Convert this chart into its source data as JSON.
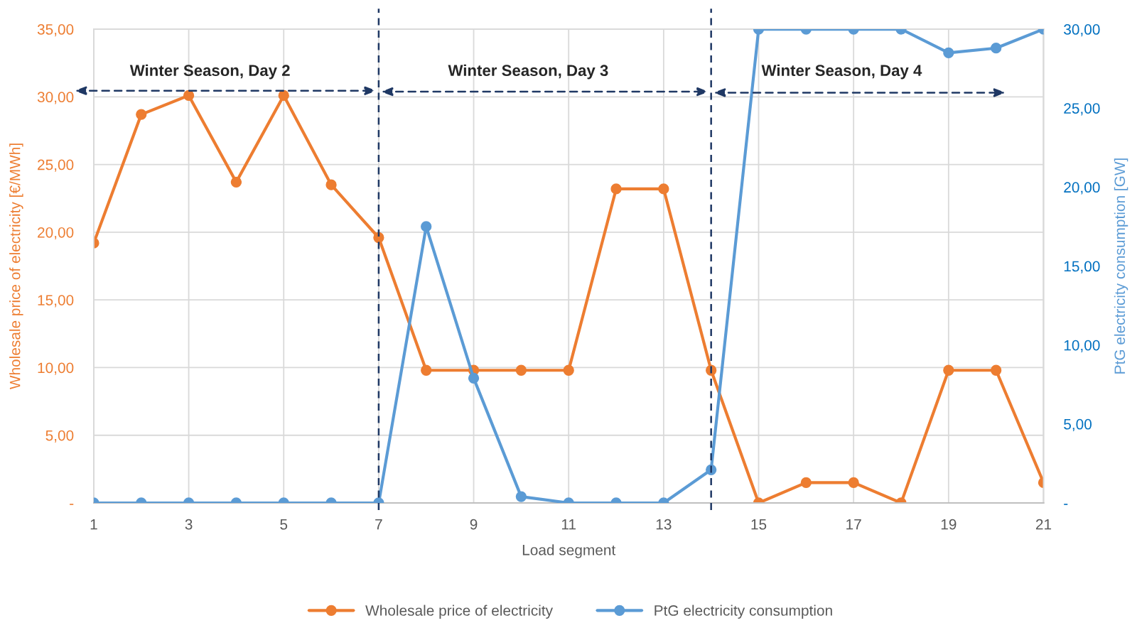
{
  "chart_data": {
    "type": "line",
    "x": [
      1,
      2,
      3,
      4,
      5,
      6,
      7,
      8,
      9,
      10,
      11,
      12,
      13,
      14,
      15,
      16,
      17,
      18,
      19,
      20,
      21
    ],
    "xlim": [
      1,
      21
    ],
    "xticks": [
      1,
      3,
      5,
      7,
      9,
      11,
      13,
      15,
      17,
      19,
      21
    ],
    "ylim": [
      0,
      35
    ],
    "yticks": [
      {
        "value": 0,
        "label": "-"
      },
      {
        "value": 5,
        "label": "5,00"
      },
      {
        "value": 10,
        "label": "10,00"
      },
      {
        "value": 15,
        "label": "15,00"
      },
      {
        "value": 20,
        "label": "20,00"
      },
      {
        "value": 25,
        "label": "25,00"
      },
      {
        "value": 30,
        "label": "30,00"
      },
      {
        "value": 35,
        "label": "35,00"
      }
    ],
    "y2lim": [
      0,
      30
    ],
    "y2ticks": [
      {
        "value": 0,
        "label": "-"
      },
      {
        "value": 5,
        "label": "5,00"
      },
      {
        "value": 10,
        "label": "10,00"
      },
      {
        "value": 15,
        "label": "15,00"
      },
      {
        "value": 20,
        "label": "20,00"
      },
      {
        "value": 25,
        "label": "25,00"
      },
      {
        "value": 30,
        "label": "30,00"
      }
    ],
    "xlabel": "Load segment",
    "ylabel": "Wholesale price of electricity [€/MWh]",
    "y2label": "PtG electricity consumption [GW]",
    "series": [
      {
        "name": "Wholesale price of electricity",
        "color": "#ed7d31",
        "values": [
          19.2,
          28.7,
          30.1,
          23.7,
          30.1,
          23.5,
          19.6,
          9.8,
          9.8,
          9.8,
          9.8,
          23.2,
          23.2,
          9.8,
          0,
          1.5,
          1.5,
          0,
          9.8,
          9.8,
          1.5
        ]
      },
      {
        "name": "PtG electricity consumption",
        "color": "#5b9bd5",
        "axis": "y2",
        "values": [
          0,
          0,
          0,
          0,
          0,
          0,
          0,
          17.5,
          7.9,
          0.4,
          0,
          0,
          0,
          2.1,
          30,
          30,
          30,
          30,
          28.5,
          28.8,
          30
        ]
      }
    ],
    "ref_lines": [
      {
        "axis": "x",
        "value": 7,
        "color": "#1f3864",
        "line_style": "dashed"
      },
      {
        "axis": "x",
        "value": 14,
        "color": "#1f3864",
        "line_style": "dashed"
      }
    ],
    "annotations": [
      "Winter Season, Day 2",
      "Winter Season, Day 3",
      "Winter Season, Day 4"
    ],
    "grid": true,
    "legend": "bottom",
    "marker": "circle",
    "line_style": "solid"
  }
}
